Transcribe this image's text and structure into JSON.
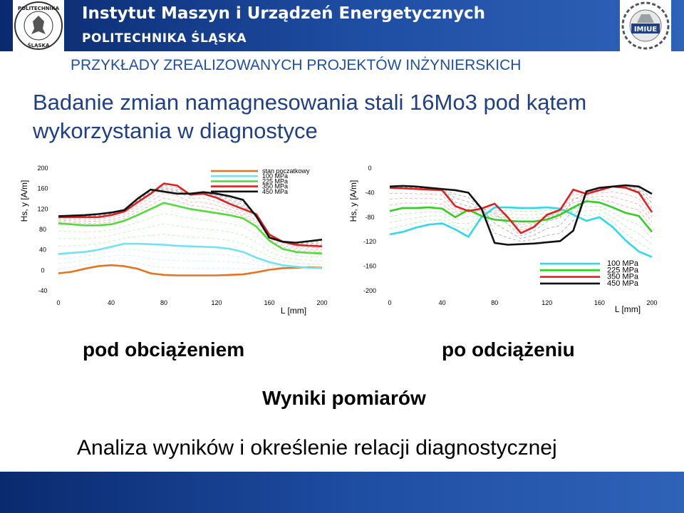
{
  "header": {
    "institute": "Instytut Maszyn i Urządzeń Energetycznych",
    "university": "POLITECHNIKA ŚLĄSKA",
    "left_logo": {
      "name": "politechnika-slaska-seal",
      "text_top": "POLITECHNIKA",
      "text_bottom": "ŚLĄSKA"
    },
    "right_logo": {
      "name": "imiue-logo",
      "text": "IMIUE"
    }
  },
  "subheader": "PRZYKŁADY ZREALIZOWANYCH PROJEKTÓW INŻYNIERSKICH",
  "title": "Badanie zmian namagnesowania stali 16Mo3 pod kątem wykorzystania w diagnostyce",
  "captions": {
    "left": "pod obciążeniem",
    "right": "po odciążeniu",
    "center": "Wyniki pomiarów",
    "bottom": "Analiza wyników i określenie relacji diagnostycznej"
  },
  "colors": {
    "header_bg": "#1f4fa5",
    "subheader_text": "#1f4fa5",
    "title_text": "#1f3f86"
  },
  "chart_data": [
    {
      "type": "line",
      "title": "",
      "xlabel": "L [mm]",
      "ylabel": "Hs, y [A/m]",
      "xlim": [
        0,
        200
      ],
      "ylim": [
        -40,
        200
      ],
      "xticks": [
        "0",
        "40",
        "80",
        "120",
        "160",
        "200"
      ],
      "yticks": [
        "200",
        "160",
        "120",
        "80",
        "40",
        "0",
        "-40"
      ],
      "yticks_values": [
        200,
        160,
        120,
        80,
        40,
        0,
        -40
      ],
      "xticks_values": [
        0,
        40,
        80,
        120,
        160,
        200
      ],
      "grid": false,
      "legend_position": "top-center",
      "legend": [
        "stan poczatkowy",
        "100 MPa",
        "225 MPa",
        "350 MPa",
        "450 MPa"
      ],
      "series": [
        {
          "name": "stan poczatkowy",
          "color": "#e8731e",
          "x": [
            0,
            10,
            20,
            30,
            40,
            50,
            60,
            70,
            80,
            90,
            100,
            110,
            120,
            130,
            140,
            150,
            160,
            170,
            180,
            190,
            200
          ],
          "y": [
            -6,
            -3,
            3,
            8,
            10,
            8,
            3,
            -6,
            -9,
            -10,
            -10,
            -10,
            -10,
            -9,
            -8,
            -4,
            1,
            4,
            5,
            6,
            5
          ]
        },
        {
          "name": "100 MPa",
          "color": "#6fe3f4",
          "x": [
            0,
            10,
            20,
            30,
            40,
            50,
            60,
            70,
            80,
            90,
            100,
            110,
            120,
            130,
            140,
            150,
            160,
            170,
            180,
            190,
            200
          ],
          "y": [
            32,
            34,
            36,
            40,
            46,
            52,
            52,
            51,
            50,
            48,
            47,
            46,
            45,
            42,
            36,
            25,
            16,
            10,
            7,
            5,
            4
          ]
        },
        {
          "name": "225 MPa",
          "color": "#52dc3a",
          "x": [
            0,
            10,
            20,
            30,
            40,
            50,
            60,
            70,
            80,
            90,
            100,
            110,
            120,
            130,
            140,
            150,
            160,
            170,
            180,
            190,
            200
          ],
          "y": [
            92,
            90,
            88,
            88,
            90,
            97,
            108,
            120,
            132,
            126,
            120,
            116,
            112,
            108,
            102,
            86,
            58,
            42,
            36,
            34,
            33
          ]
        },
        {
          "name": "350 MPa",
          "color": "#e02020",
          "x": [
            0,
            10,
            20,
            30,
            40,
            50,
            60,
            70,
            80,
            90,
            100,
            110,
            120,
            130,
            140,
            150,
            160,
            170,
            180,
            190,
            200
          ],
          "y": [
            104,
            104,
            104,
            104,
            108,
            115,
            133,
            150,
            170,
            166,
            148,
            150,
            142,
            130,
            120,
            110,
            70,
            56,
            50,
            48,
            47
          ]
        },
        {
          "name": "450 MPa",
          "color": "#111111",
          "x": [
            0,
            10,
            20,
            30,
            40,
            50,
            60,
            70,
            80,
            90,
            100,
            110,
            120,
            130,
            140,
            150,
            160,
            170,
            180,
            190,
            200
          ],
          "y": [
            106,
            107,
            108,
            110,
            113,
            118,
            140,
            158,
            154,
            150,
            150,
            153,
            150,
            145,
            138,
            106,
            64,
            56,
            54,
            57,
            60
          ]
        }
      ]
    },
    {
      "type": "line",
      "title": "",
      "xlabel": "L [mm]",
      "ylabel": "Hs, y [A/m]",
      "xlim": [
        0,
        200
      ],
      "ylim": [
        -200,
        0
      ],
      "xticks": [
        "0",
        "40",
        "80",
        "120",
        "160",
        "200"
      ],
      "yticks": [
        "0",
        "-40",
        "-80",
        "-120",
        "-160",
        "-200"
      ],
      "yticks_values": [
        0,
        -40,
        -80,
        -120,
        -160,
        -200
      ],
      "xticks_values": [
        0,
        40,
        80,
        120,
        160,
        200
      ],
      "grid": false,
      "legend_position": "bottom-right",
      "legend": [
        "100 MPa",
        "225 MPa",
        "350 MPa",
        "450 MPa"
      ],
      "series": [
        {
          "name": "100 MPa",
          "color": "#2fd8ee",
          "x": [
            0,
            10,
            20,
            30,
            40,
            50,
            60,
            70,
            80,
            90,
            100,
            110,
            120,
            130,
            140,
            150,
            160,
            170,
            180,
            190,
            200
          ],
          "y": [
            -108,
            -104,
            -97,
            -92,
            -90,
            -100,
            -112,
            -80,
            -64,
            -64,
            -65,
            -65,
            -64,
            -66,
            -76,
            -86,
            -80,
            -96,
            -118,
            -136,
            -145
          ]
        },
        {
          "name": "225 MPa",
          "color": "#2fd021",
          "x": [
            0,
            10,
            20,
            30,
            40,
            50,
            60,
            70,
            80,
            90,
            100,
            110,
            120,
            130,
            140,
            150,
            160,
            170,
            180,
            190,
            200
          ],
          "y": [
            -70,
            -65,
            -65,
            -64,
            -66,
            -80,
            -68,
            -78,
            -84,
            -86,
            -87,
            -87,
            -84,
            -76,
            -64,
            -54,
            -56,
            -64,
            -73,
            -78,
            -104
          ]
        },
        {
          "name": "350 MPa",
          "color": "#e02020",
          "x": [
            0,
            10,
            20,
            30,
            40,
            50,
            60,
            70,
            80,
            90,
            100,
            110,
            120,
            130,
            140,
            150,
            160,
            170,
            180,
            190,
            200
          ],
          "y": [
            -32,
            -33,
            -34,
            -35,
            -36,
            -62,
            -70,
            -66,
            -58,
            -80,
            -106,
            -96,
            -76,
            -68,
            -35,
            -42,
            -36,
            -30,
            -32,
            -40,
            -72
          ]
        },
        {
          "name": "450 MPa",
          "color": "#111111",
          "x": [
            0,
            10,
            20,
            30,
            40,
            50,
            60,
            70,
            80,
            90,
            100,
            110,
            120,
            130,
            140,
            150,
            160,
            170,
            180,
            190,
            200
          ],
          "y": [
            -30,
            -29,
            -30,
            -32,
            -34,
            -36,
            -40,
            -66,
            -122,
            -125,
            -124,
            -123,
            -121,
            -119,
            -102,
            -38,
            -32,
            -30,
            -28,
            -30,
            -42
          ]
        }
      ]
    }
  ]
}
